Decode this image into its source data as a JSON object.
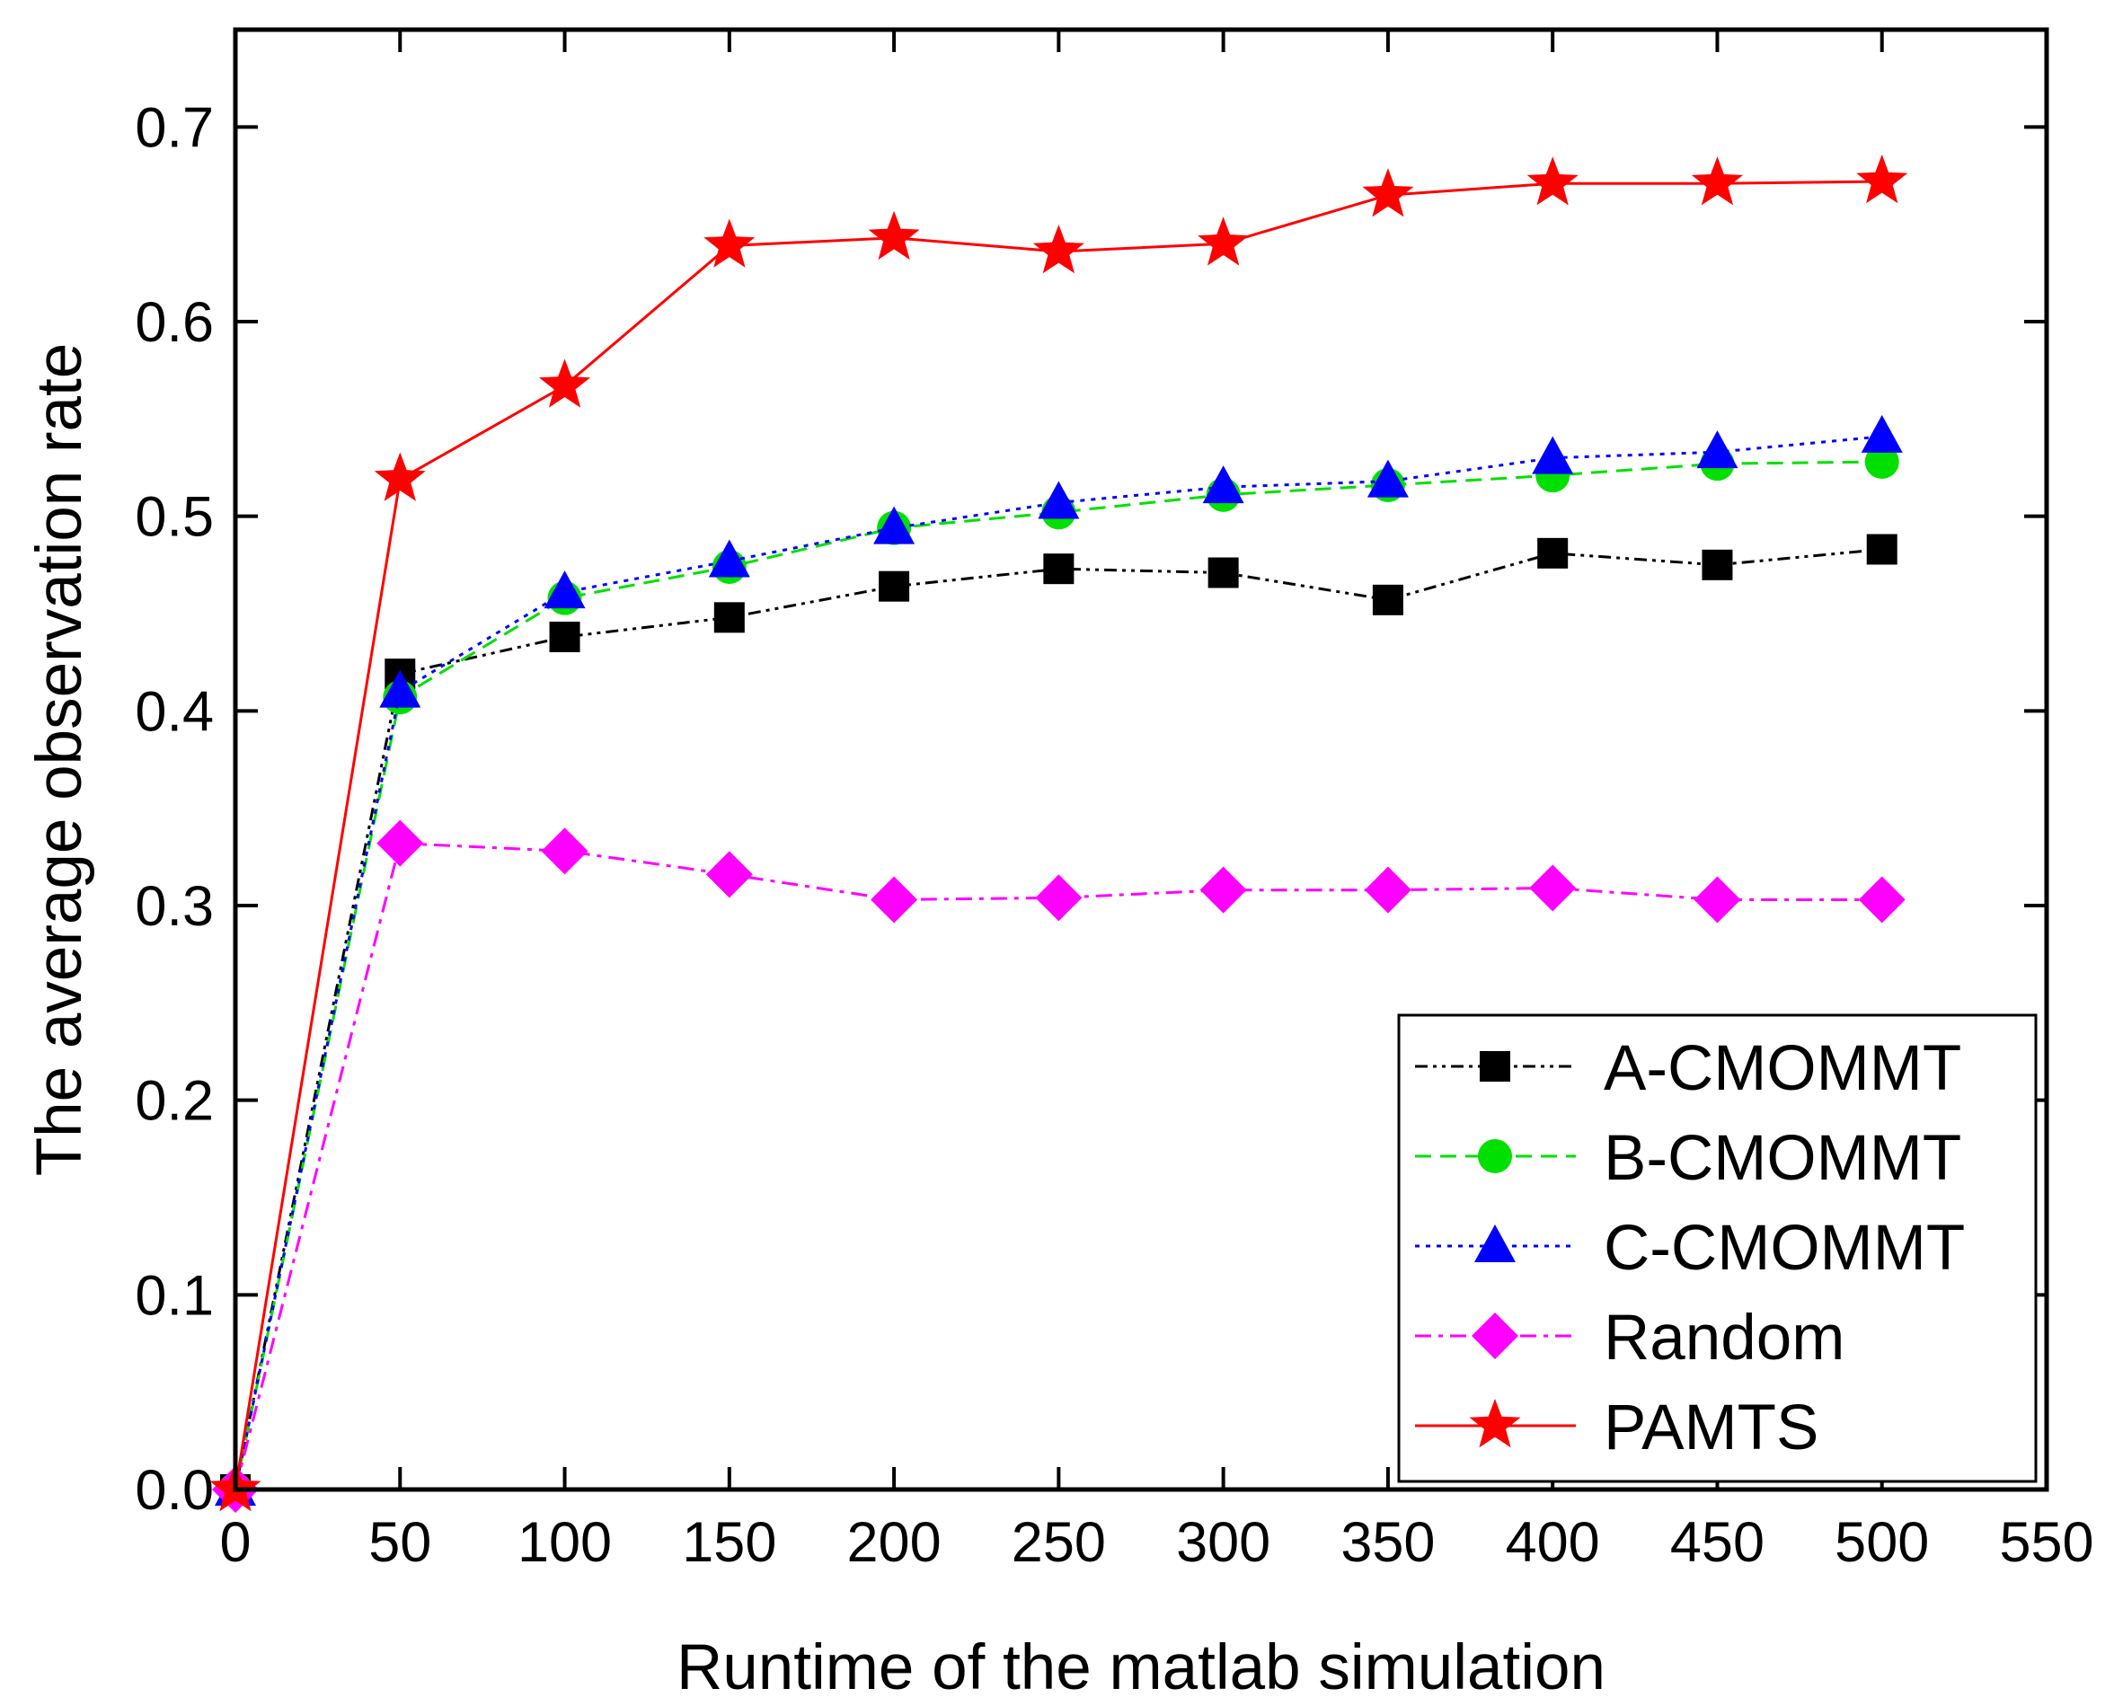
{
  "chart_data": {
    "type": "line",
    "xlabel": "Runtime of the matlab simulation",
    "ylabel": "The average observation rate",
    "xlim": [
      0,
      550
    ],
    "ylim": [
      0,
      0.75
    ],
    "xticks": [
      "0",
      "50",
      "100",
      "150",
      "200",
      "250",
      "300",
      "350",
      "400",
      "450",
      "500",
      "550"
    ],
    "yticks": [
      "0.0",
      "0.1",
      "0.2",
      "0.3",
      "0.4",
      "0.5",
      "0.6",
      "0.7"
    ],
    "grid": false,
    "legend_position": "bottom-right",
    "x": [
      0,
      50,
      100,
      150,
      200,
      250,
      300,
      350,
      400,
      450,
      500
    ],
    "series": [
      {
        "name": "A-CMOMMT",
        "color": "#000000",
        "marker": "square",
        "dash": "dash-dot-dot",
        "values": [
          0,
          0.419,
          0.438,
          0.448,
          0.464,
          0.473,
          0.471,
          0.457,
          0.481,
          0.475,
          0.483
        ]
      },
      {
        "name": "B-CMOMMT",
        "color": "#00e000",
        "marker": "circle",
        "dash": "dashed",
        "values": [
          0,
          0.407,
          0.458,
          0.474,
          0.494,
          0.502,
          0.511,
          0.516,
          0.521,
          0.527,
          0.528
        ]
      },
      {
        "name": "C-CMOMMT",
        "color": "#0000ff",
        "marker": "triangle",
        "dash": "dotted",
        "values": [
          0,
          0.41,
          0.461,
          0.477,
          0.494,
          0.507,
          0.515,
          0.518,
          0.53,
          0.533,
          0.541
        ]
      },
      {
        "name": "Random",
        "color": "#ff00ff",
        "marker": "diamond",
        "dash": "dash-dot",
        "values": [
          0,
          0.332,
          0.328,
          0.316,
          0.303,
          0.304,
          0.308,
          0.308,
          0.309,
          0.303,
          0.303
        ]
      },
      {
        "name": "PAMTS",
        "color": "#ff0000",
        "marker": "star",
        "dash": "solid",
        "values": [
          0,
          0.519,
          0.567,
          0.639,
          0.643,
          0.636,
          0.64,
          0.665,
          0.671,
          0.671,
          0.672
        ]
      }
    ]
  }
}
